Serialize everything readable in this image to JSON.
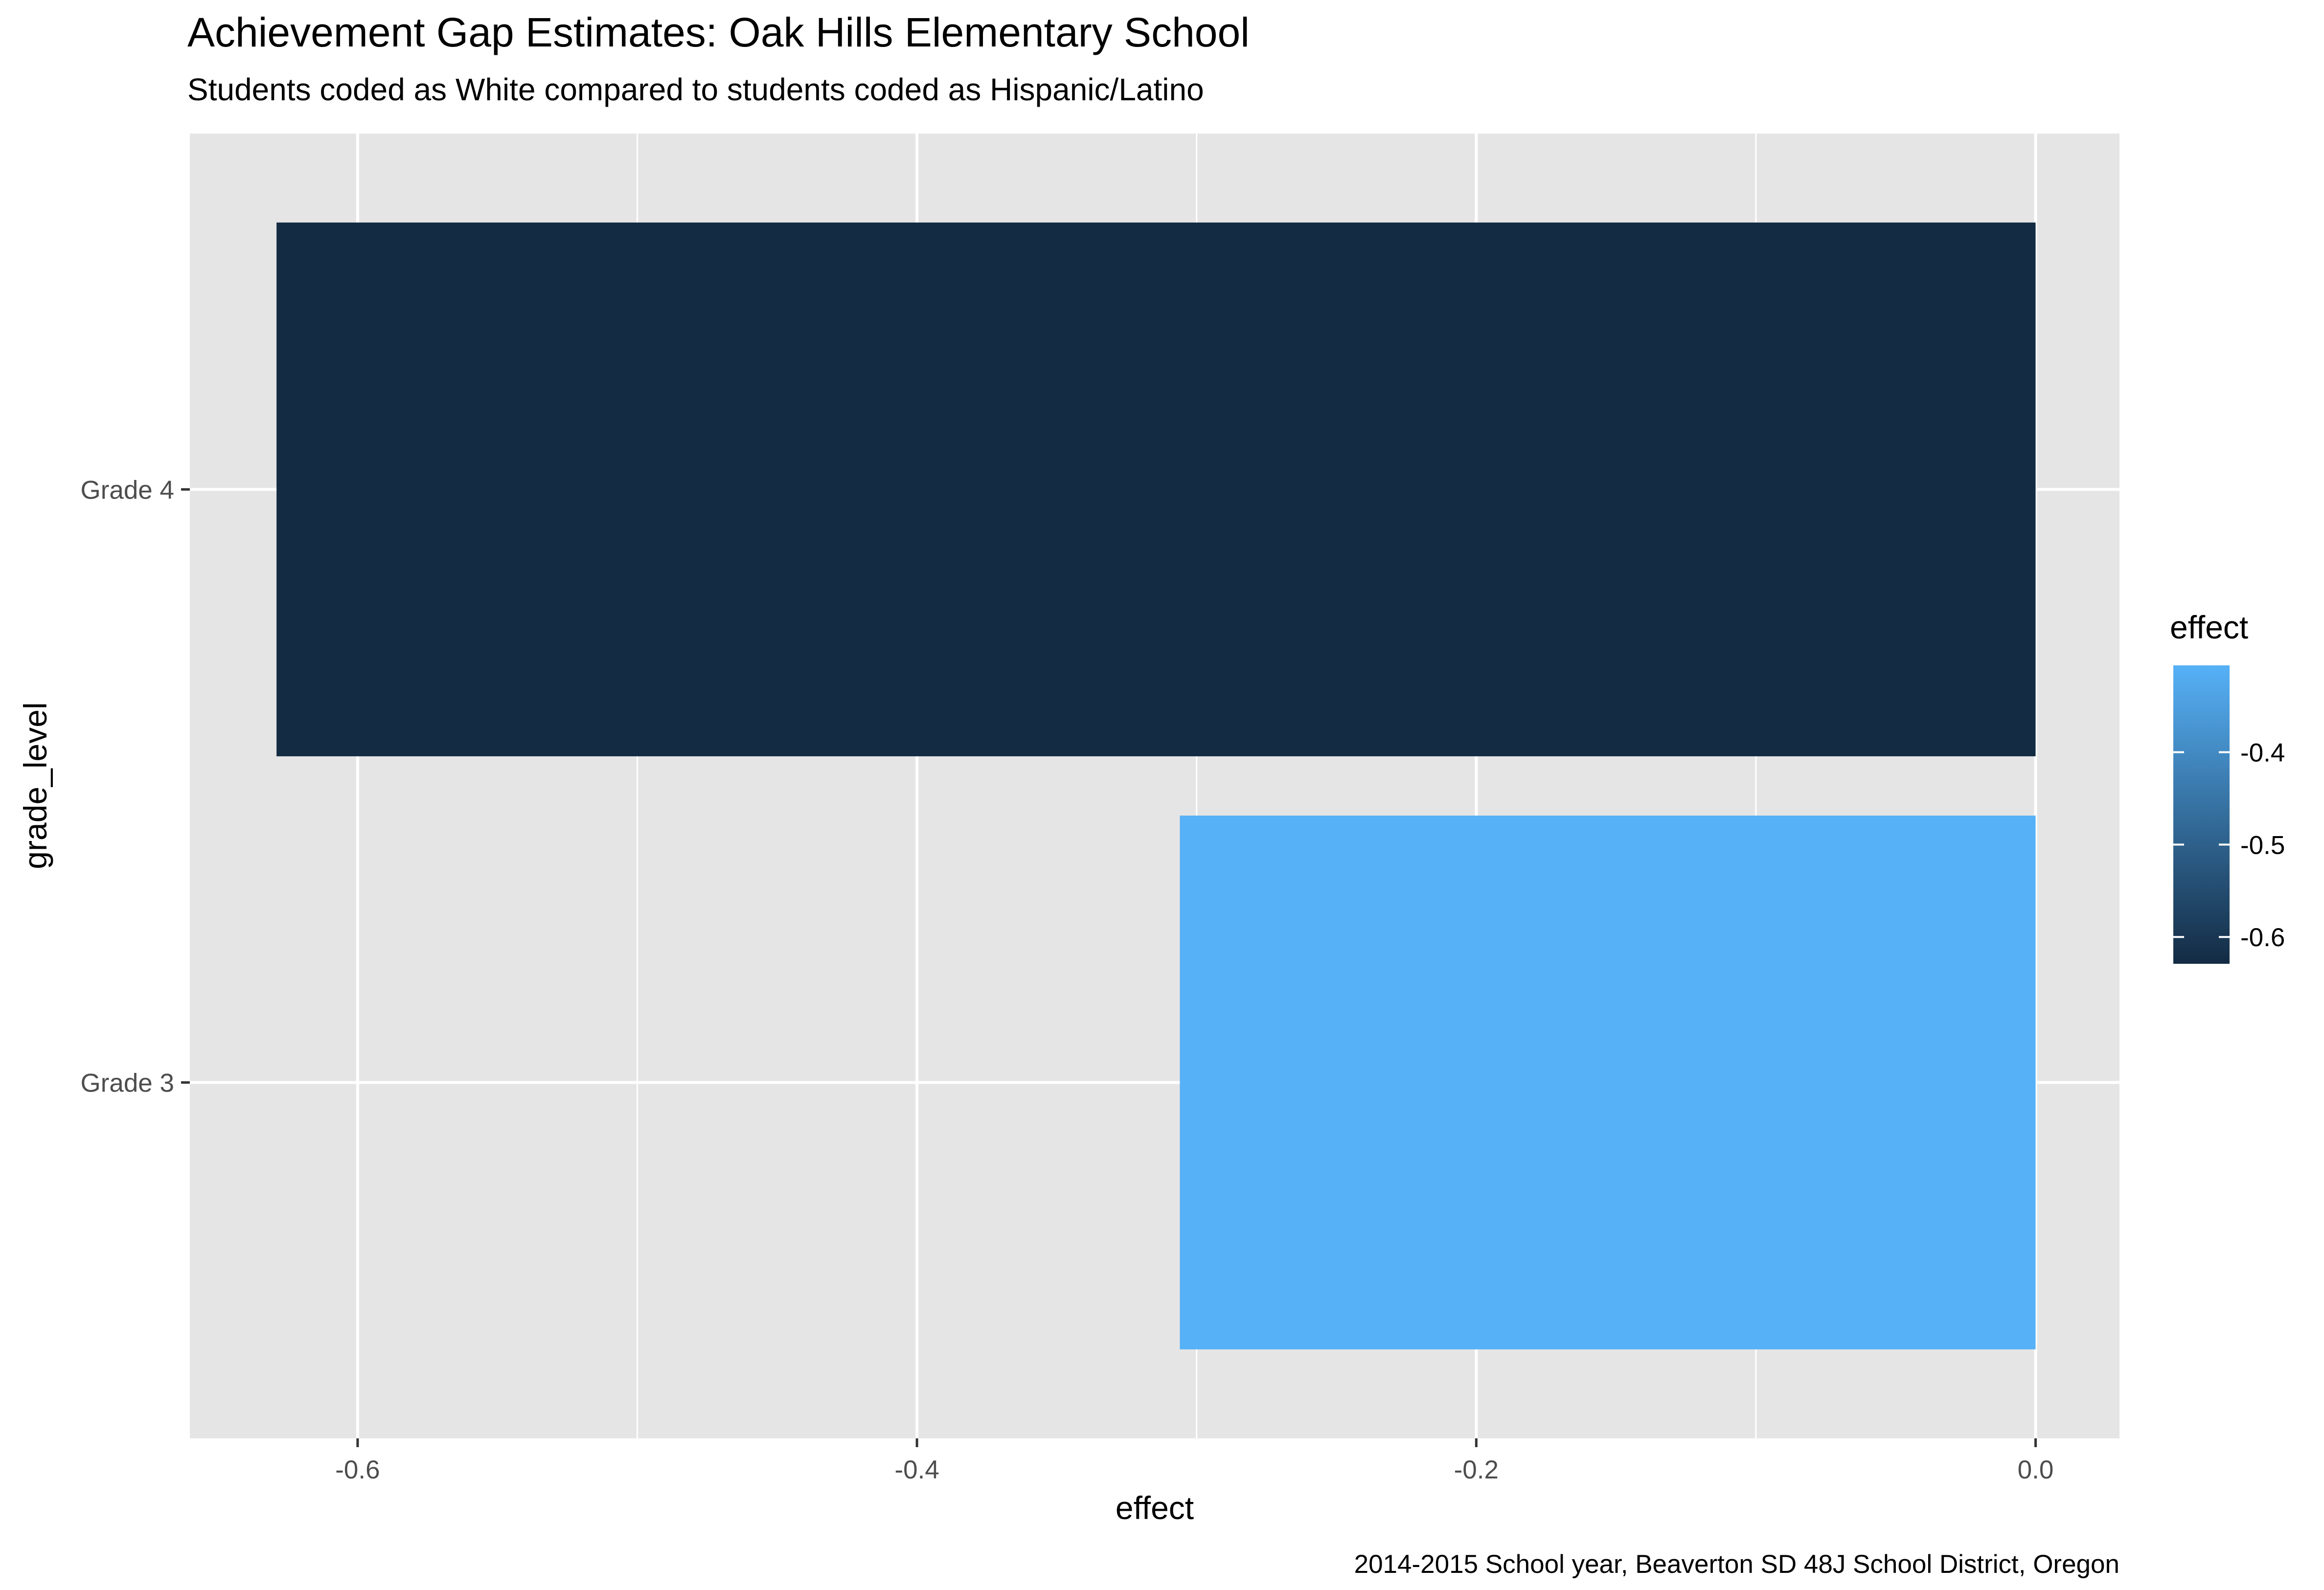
{
  "chart_data": {
    "type": "bar",
    "orientation": "horizontal",
    "title": "Achievement Gap Estimates: Oak Hills Elementary School",
    "subtitle": "Students coded as White compared to students coded as Hispanic/Latino",
    "xlabel": "effect",
    "ylabel": "grade_level",
    "caption": "2014-2015 School year, Beaverton SD 48J School District, Oregon",
    "categories": [
      "Grade 3",
      "Grade 4"
    ],
    "values": [
      -0.306,
      -0.629
    ],
    "xlim": [
      -0.66,
      0.03
    ],
    "xticks": [
      -0.6,
      -0.4,
      -0.2,
      0.0
    ],
    "xtick_labels": [
      "-0.6",
      "-0.4",
      "-0.2",
      "0.0"
    ],
    "grid": true,
    "background": "#e5e5e5",
    "legend": {
      "title": "effect",
      "type": "colorbar",
      "placement": "right",
      "range": [
        -0.629,
        -0.306
      ],
      "breaks": [
        -0.4,
        -0.5,
        -0.6
      ],
      "break_labels": [
        "-0.4",
        "-0.5",
        "-0.6"
      ],
      "low_color": "#132b43",
      "high_color": "#56b1f7"
    }
  }
}
